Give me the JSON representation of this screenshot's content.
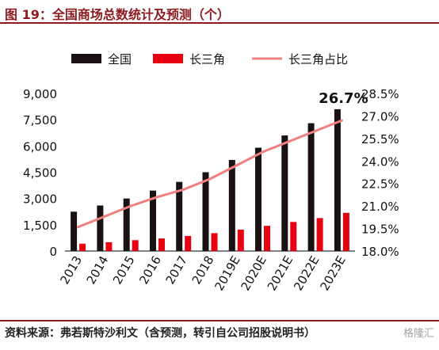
{
  "header": {
    "title": "图 19：全国商场总数统计及预测（个）"
  },
  "footer": {
    "source": "资料来源：弗若斯特沙利文（含预测，转引自公司招股说明书）",
    "watermark": "格隆汇"
  },
  "chart_data": {
    "type": "bar",
    "categories": [
      "2013",
      "2014",
      "2015",
      "2016",
      "2017",
      "2018",
      "2019E",
      "2020E",
      "2021E",
      "2022E",
      "2023E"
    ],
    "series": [
      {
        "name": "全国",
        "kind": "bar",
        "axis": "left",
        "color": "#1a1212",
        "values": [
          2250,
          2600,
          3000,
          3450,
          3950,
          4500,
          5200,
          5900,
          6600,
          7300,
          8100
        ]
      },
      {
        "name": "长三角",
        "kind": "bar",
        "axis": "left",
        "color": "#e60012",
        "values": [
          420,
          500,
          620,
          720,
          860,
          1020,
          1220,
          1440,
          1660,
          1880,
          2180
        ]
      },
      {
        "name": "长三角占比",
        "kind": "line",
        "axis": "right",
        "color": "#f08080",
        "values": [
          19.6,
          20.3,
          21.0,
          21.6,
          22.1,
          22.8,
          23.7,
          24.6,
          25.3,
          26.0,
          26.7
        ]
      }
    ],
    "annotation": "26.7%",
    "left_axis": {
      "ylim": [
        0,
        9000
      ],
      "ticks": [
        "0",
        "1,500",
        "3,000",
        "4,500",
        "6,000",
        "7,500",
        "9,000"
      ]
    },
    "right_axis": {
      "ylim": [
        18.0,
        28.5
      ],
      "ticks": [
        "18.0%",
        "19.5%",
        "21.0%",
        "22.5%",
        "24.0%",
        "25.5%",
        "27.0%",
        "28.5%"
      ]
    },
    "legend_position": "top",
    "grid": false
  }
}
